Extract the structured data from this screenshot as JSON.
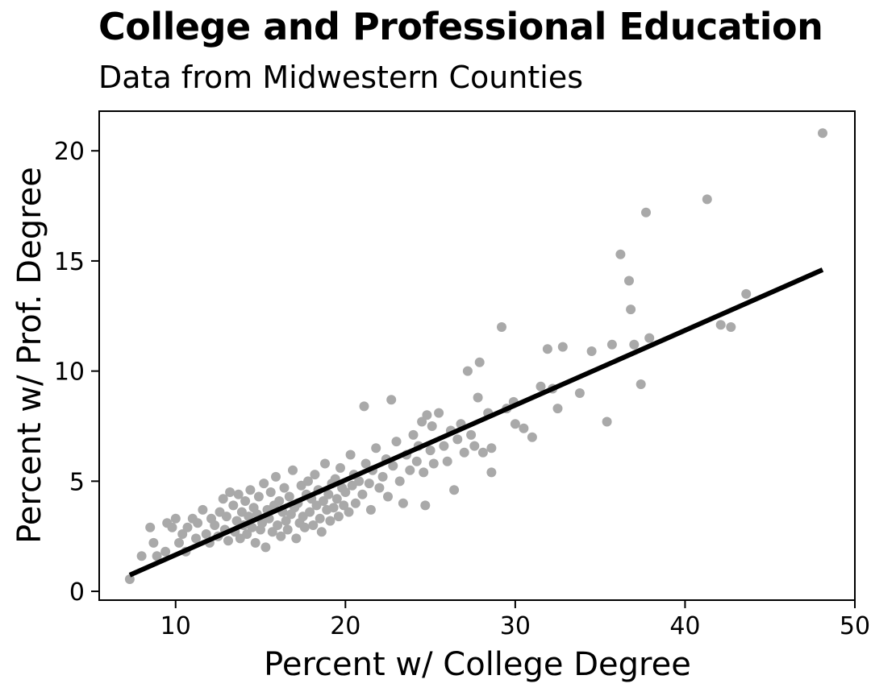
{
  "chart_data": {
    "type": "scatter",
    "title": "College and Professional Education",
    "subtitle": "Data from Midwestern Counties",
    "xlabel": "Percent w/ College Degree",
    "ylabel": "Percent w/ Prof. Degree",
    "xlim": [
      5.5,
      50
    ],
    "ylim": [
      -0.4,
      21.8
    ],
    "x_ticks": [
      10,
      20,
      30,
      40,
      50
    ],
    "y_ticks": [
      0,
      5,
      10,
      15,
      20
    ],
    "grid": false,
    "colors": {
      "points": "#a9a9a9",
      "trend_line": "#000000",
      "frame": "#000000"
    },
    "trend_line": {
      "x": [
        7.3,
        48.1
      ],
      "y": [
        0.74,
        14.6
      ]
    },
    "series": [
      {
        "points": [
          [
            7.3,
            0.55
          ],
          [
            8.0,
            1.6
          ],
          [
            8.5,
            2.9
          ],
          [
            8.7,
            2.2
          ],
          [
            8.9,
            1.6
          ],
          [
            9.4,
            1.8
          ],
          [
            9.5,
            3.1
          ],
          [
            9.8,
            2.9
          ],
          [
            10.0,
            3.3
          ],
          [
            10.2,
            2.2
          ],
          [
            10.4,
            2.6
          ],
          [
            10.6,
            1.8
          ],
          [
            10.7,
            2.9
          ],
          [
            11.0,
            3.3
          ],
          [
            11.2,
            2.4
          ],
          [
            11.3,
            3.1
          ],
          [
            11.6,
            3.7
          ],
          [
            11.8,
            2.6
          ],
          [
            12.0,
            2.2
          ],
          [
            12.1,
            3.3
          ],
          [
            12.3,
            3.0
          ],
          [
            12.5,
            2.5
          ],
          [
            12.6,
            3.6
          ],
          [
            12.8,
            4.2
          ],
          [
            12.9,
            2.8
          ],
          [
            13.0,
            3.4
          ],
          [
            13.1,
            2.3
          ],
          [
            13.2,
            4.5
          ],
          [
            13.4,
            3.9
          ],
          [
            13.5,
            2.7
          ],
          [
            13.6,
            3.2
          ],
          [
            13.7,
            4.4
          ],
          [
            13.8,
            2.4
          ],
          [
            13.9,
            3.6
          ],
          [
            14.0,
            3.0
          ],
          [
            14.1,
            4.1
          ],
          [
            14.2,
            2.6
          ],
          [
            14.3,
            3.4
          ],
          [
            14.4,
            4.6
          ],
          [
            14.5,
            2.9
          ],
          [
            14.6,
            3.8
          ],
          [
            14.7,
            2.2
          ],
          [
            14.8,
            3.5
          ],
          [
            14.9,
            4.3
          ],
          [
            15.0,
            2.8
          ],
          [
            15.1,
            3.1
          ],
          [
            15.2,
            4.9
          ],
          [
            15.3,
            2.0
          ],
          [
            15.4,
            3.7
          ],
          [
            15.5,
            3.3
          ],
          [
            15.6,
            4.5
          ],
          [
            15.7,
            2.7
          ],
          [
            15.8,
            3.9
          ],
          [
            15.9,
            5.2
          ],
          [
            16.0,
            3.0
          ],
          [
            16.1,
            4.1
          ],
          [
            16.2,
            2.5
          ],
          [
            16.3,
            3.6
          ],
          [
            16.4,
            4.7
          ],
          [
            16.5,
            3.2
          ],
          [
            16.6,
            2.8
          ],
          [
            16.7,
            4.3
          ],
          [
            16.8,
            3.5
          ],
          [
            16.9,
            5.5
          ],
          [
            17.0,
            3.8
          ],
          [
            17.1,
            2.4
          ],
          [
            17.2,
            4.0
          ],
          [
            17.3,
            3.1
          ],
          [
            17.4,
            4.8
          ],
          [
            17.5,
            3.4
          ],
          [
            17.6,
            2.9
          ],
          [
            17.7,
            4.4
          ],
          [
            17.8,
            5.0
          ],
          [
            17.9,
            3.6
          ],
          [
            18.0,
            4.2
          ],
          [
            18.1,
            3.0
          ],
          [
            18.2,
            5.3
          ],
          [
            18.3,
            3.9
          ],
          [
            18.4,
            4.6
          ],
          [
            18.5,
            3.3
          ],
          [
            18.6,
            2.7
          ],
          [
            18.7,
            4.1
          ],
          [
            18.8,
            5.8
          ],
          [
            18.9,
            3.7
          ],
          [
            19.0,
            4.4
          ],
          [
            19.1,
            3.2
          ],
          [
            19.2,
            4.9
          ],
          [
            19.3,
            3.8
          ],
          [
            19.4,
            5.1
          ],
          [
            19.5,
            4.2
          ],
          [
            19.6,
            3.4
          ],
          [
            19.7,
            5.6
          ],
          [
            19.8,
            4.7
          ],
          [
            19.9,
            3.9
          ],
          [
            20.0,
            4.5
          ],
          [
            20.2,
            3.6
          ],
          [
            20.3,
            6.2
          ],
          [
            20.4,
            4.8
          ],
          [
            20.5,
            5.3
          ],
          [
            20.6,
            4.0
          ],
          [
            20.8,
            5.0
          ],
          [
            21.0,
            4.4
          ],
          [
            21.1,
            8.4
          ],
          [
            21.2,
            5.8
          ],
          [
            21.4,
            4.9
          ],
          [
            21.5,
            3.7
          ],
          [
            21.6,
            5.5
          ],
          [
            21.8,
            6.5
          ],
          [
            22.0,
            4.7
          ],
          [
            22.2,
            5.2
          ],
          [
            22.4,
            6.0
          ],
          [
            22.5,
            4.3
          ],
          [
            22.7,
            8.7
          ],
          [
            22.8,
            5.7
          ],
          [
            23.0,
            6.8
          ],
          [
            23.2,
            5.0
          ],
          [
            23.4,
            4.0
          ],
          [
            23.6,
            6.2
          ],
          [
            23.8,
            5.5
          ],
          [
            24.0,
            7.1
          ],
          [
            24.2,
            5.9
          ],
          [
            24.3,
            6.6
          ],
          [
            24.5,
            7.7
          ],
          [
            24.6,
            5.4
          ],
          [
            24.7,
            3.9
          ],
          [
            24.8,
            8.0
          ],
          [
            25.0,
            6.4
          ],
          [
            25.1,
            7.5
          ],
          [
            25.2,
            5.8
          ],
          [
            25.5,
            8.1
          ],
          [
            25.8,
            6.6
          ],
          [
            26.0,
            5.9
          ],
          [
            26.2,
            7.3
          ],
          [
            26.4,
            4.6
          ],
          [
            26.6,
            6.9
          ],
          [
            26.8,
            7.6
          ],
          [
            27.0,
            6.3
          ],
          [
            27.2,
            10.0
          ],
          [
            27.4,
            7.1
          ],
          [
            27.6,
            6.6
          ],
          [
            27.8,
            8.8
          ],
          [
            27.9,
            10.4
          ],
          [
            28.1,
            6.3
          ],
          [
            28.4,
            8.1
          ],
          [
            28.6,
            6.5
          ],
          [
            28.6,
            5.4
          ],
          [
            29.2,
            12.0
          ],
          [
            29.5,
            8.3
          ],
          [
            29.9,
            8.6
          ],
          [
            30.0,
            7.6
          ],
          [
            30.5,
            7.4
          ],
          [
            31.0,
            7.0
          ],
          [
            31.5,
            9.3
          ],
          [
            31.9,
            11.0
          ],
          [
            32.2,
            9.2
          ],
          [
            32.5,
            8.3
          ],
          [
            32.8,
            11.1
          ],
          [
            33.8,
            9.0
          ],
          [
            34.5,
            10.9
          ],
          [
            35.4,
            7.7
          ],
          [
            35.7,
            11.2
          ],
          [
            36.2,
            15.3
          ],
          [
            36.7,
            14.1
          ],
          [
            36.8,
            12.8
          ],
          [
            37.0,
            11.2
          ],
          [
            37.4,
            9.4
          ],
          [
            37.7,
            17.2
          ],
          [
            37.9,
            11.5
          ],
          [
            41.3,
            17.8
          ],
          [
            42.1,
            12.1
          ],
          [
            42.7,
            12.0
          ],
          [
            43.6,
            13.5
          ],
          [
            48.1,
            20.8
          ]
        ]
      }
    ]
  }
}
